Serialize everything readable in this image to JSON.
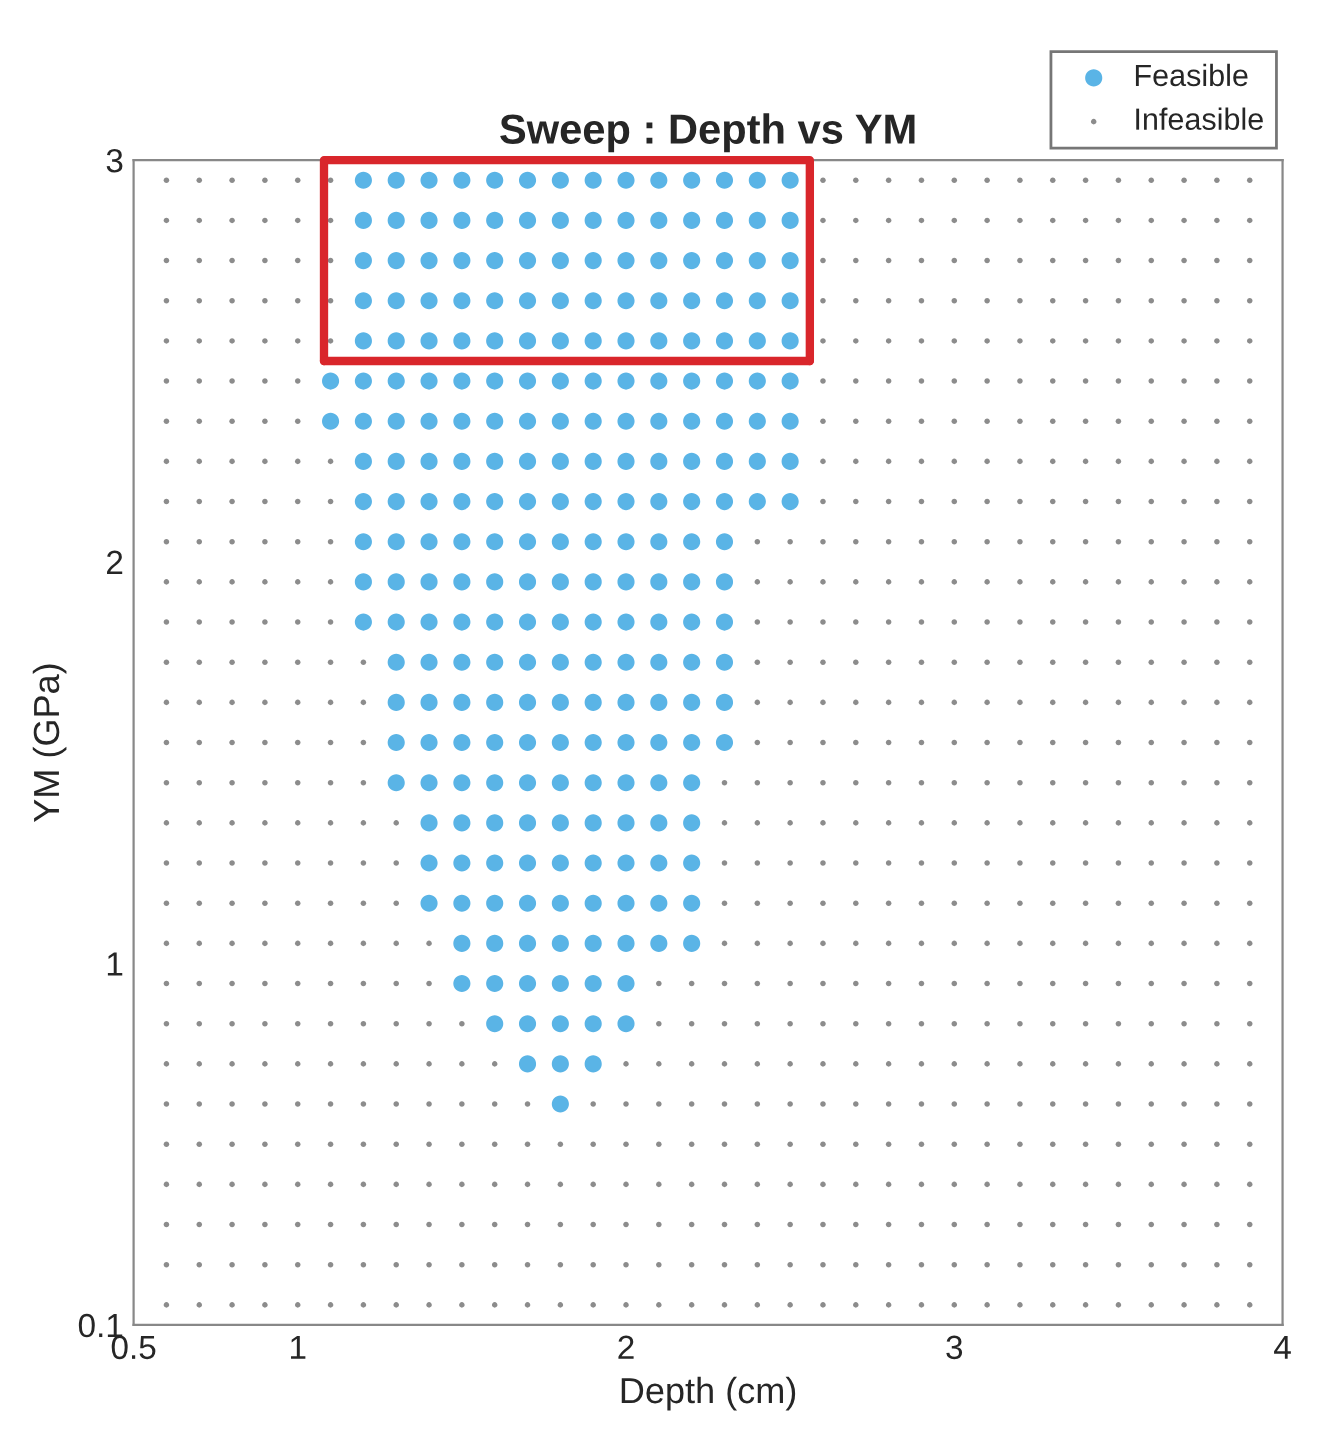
{
  "chart_data": {
    "type": "scatter",
    "title": "Sweep : Depth vs YM",
    "xlabel": "Depth (cm)",
    "ylabel": "YM (GPa)",
    "xlim": [
      0.5,
      4
    ],
    "ylim": [
      0.1,
      3
    ],
    "xticks": [
      0.5,
      1,
      2,
      3,
      4
    ],
    "yticks": [
      0.1,
      1,
      2,
      3
    ],
    "grid": false,
    "legend": "top right",
    "series": [
      {
        "name": "Feasible",
        "color": "#5ab4e6",
        "marker": "circle",
        "x": [
          1.1,
          1.1,
          1.2,
          1.2,
          1.2,
          1.2,
          1.2,
          1.2,
          1.2,
          1.2,
          1.2,
          1.2,
          1.2,
          1.2,
          1.3,
          1.3,
          1.3,
          1.3,
          1.3,
          1.3,
          1.3,
          1.3,
          1.3,
          1.3,
          1.3,
          1.3,
          1.3,
          1.3,
          1.3,
          1.3,
          1.4,
          1.4,
          1.4,
          1.4,
          1.4,
          1.4,
          1.4,
          1.4,
          1.4,
          1.4,
          1.4,
          1.4,
          1.4,
          1.4,
          1.4,
          1.4,
          1.4,
          1.4,
          1.4,
          1.5,
          1.5,
          1.5,
          1.5,
          1.5,
          1.5,
          1.5,
          1.5,
          1.5,
          1.5,
          1.5,
          1.5,
          1.5,
          1.5,
          1.5,
          1.5,
          1.5,
          1.5,
          1.5,
          1.5,
          1.5,
          1.6,
          1.6,
          1.6,
          1.6,
          1.6,
          1.6,
          1.6,
          1.6,
          1.6,
          1.6,
          1.6,
          1.6,
          1.6,
          1.6,
          1.6,
          1.6,
          1.6,
          1.6,
          1.6,
          1.6,
          1.6,
          1.6,
          1.7,
          1.7,
          1.7,
          1.7,
          1.7,
          1.7,
          1.7,
          1.7,
          1.7,
          1.7,
          1.7,
          1.7,
          1.7,
          1.7,
          1.7,
          1.7,
          1.7,
          1.7,
          1.7,
          1.7,
          1.7,
          1.7,
          1.7,
          1.8,
          1.8,
          1.8,
          1.8,
          1.8,
          1.8,
          1.8,
          1.8,
          1.8,
          1.8,
          1.8,
          1.8,
          1.8,
          1.8,
          1.8,
          1.8,
          1.8,
          1.8,
          1.8,
          1.8,
          1.8,
          1.8,
          1.8,
          1.8,
          1.9,
          1.9,
          1.9,
          1.9,
          1.9,
          1.9,
          1.9,
          1.9,
          1.9,
          1.9,
          1.9,
          1.9,
          1.9,
          1.9,
          1.9,
          1.9,
          1.9,
          1.9,
          1.9,
          1.9,
          1.9,
          1.9,
          1.9,
          2.0,
          2.0,
          2.0,
          2.0,
          2.0,
          2.0,
          2.0,
          2.0,
          2.0,
          2.0,
          2.0,
          2.0,
          2.0,
          2.0,
          2.0,
          2.0,
          2.0,
          2.0,
          2.0,
          2.0,
          2.0,
          2.0,
          2.1,
          2.1,
          2.1,
          2.1,
          2.1,
          2.1,
          2.1,
          2.1,
          2.1,
          2.1,
          2.1,
          2.1,
          2.1,
          2.1,
          2.1,
          2.1,
          2.1,
          2.1,
          2.1,
          2.1,
          2.2,
          2.2,
          2.2,
          2.2,
          2.2,
          2.2,
          2.2,
          2.2,
          2.2,
          2.2,
          2.2,
          2.2,
          2.2,
          2.2,
          2.2,
          2.2,
          2.2,
          2.2,
          2.2,
          2.2,
          2.3,
          2.3,
          2.3,
          2.3,
          2.3,
          2.3,
          2.3,
          2.3,
          2.3,
          2.3,
          2.3,
          2.3,
          2.3,
          2.3,
          2.3,
          2.4,
          2.4,
          2.4,
          2.4,
          2.4,
          2.4,
          2.4,
          2.4,
          2.4,
          2.5,
          2.5,
          2.5,
          2.5,
          2.5,
          2.5,
          2.5,
          2.5,
          2.5
        ],
        "values": [
          2.35,
          2.45,
          1.85,
          1.95,
          2.05,
          2.15,
          2.25,
          2.35,
          2.45,
          2.55,
          2.65,
          2.75,
          2.85,
          2.95,
          1.45,
          1.55,
          1.65,
          1.75,
          1.85,
          1.95,
          2.05,
          2.15,
          2.25,
          2.35,
          2.45,
          2.55,
          2.65,
          2.75,
          2.85,
          2.95,
          1.15,
          1.25,
          1.35,
          1.45,
          1.55,
          1.65,
          1.75,
          1.85,
          1.95,
          2.05,
          2.15,
          2.25,
          2.35,
          2.45,
          2.55,
          2.65,
          2.75,
          2.85,
          2.95,
          0.95,
          1.05,
          1.15,
          1.25,
          1.35,
          1.45,
          1.55,
          1.65,
          1.75,
          1.85,
          1.95,
          2.05,
          2.15,
          2.25,
          2.35,
          2.45,
          2.55,
          2.65,
          2.75,
          2.85,
          2.95,
          0.85,
          0.95,
          1.05,
          1.15,
          1.25,
          1.35,
          1.45,
          1.55,
          1.65,
          1.75,
          1.85,
          1.95,
          2.05,
          2.15,
          2.25,
          2.35,
          2.45,
          2.55,
          2.65,
          2.75,
          2.85,
          2.95,
          0.75,
          0.85,
          0.95,
          1.05,
          1.15,
          1.25,
          1.35,
          1.45,
          1.55,
          1.65,
          1.75,
          1.85,
          1.95,
          2.05,
          2.15,
          2.25,
          2.35,
          2.45,
          2.55,
          2.65,
          2.75,
          2.85,
          2.95,
          0.65,
          0.75,
          0.85,
          0.95,
          1.05,
          1.15,
          1.25,
          1.35,
          1.45,
          1.55,
          1.65,
          1.75,
          1.85,
          1.95,
          2.05,
          2.15,
          2.25,
          2.35,
          2.45,
          2.55,
          2.65,
          2.75,
          2.85,
          2.95,
          0.75,
          0.85,
          0.95,
          1.05,
          1.15,
          1.25,
          1.35,
          1.45,
          1.55,
          1.65,
          1.75,
          1.85,
          1.95,
          2.05,
          2.15,
          2.25,
          2.35,
          2.45,
          2.55,
          2.65,
          2.75,
          2.85,
          2.95,
          0.85,
          0.95,
          1.05,
          1.15,
          1.25,
          1.35,
          1.45,
          1.55,
          1.65,
          1.75,
          1.85,
          1.95,
          2.05,
          2.15,
          2.25,
          2.35,
          2.45,
          2.55,
          2.65,
          2.75,
          2.85,
          2.95,
          1.05,
          1.15,
          1.25,
          1.35,
          1.45,
          1.55,
          1.65,
          1.75,
          1.85,
          1.95,
          2.05,
          2.15,
          2.25,
          2.35,
          2.45,
          2.55,
          2.65,
          2.75,
          2.85,
          2.95,
          1.05,
          1.15,
          1.25,
          1.35,
          1.45,
          1.55,
          1.65,
          1.75,
          1.85,
          1.95,
          2.05,
          2.15,
          2.25,
          2.35,
          2.45,
          2.55,
          2.65,
          2.75,
          2.85,
          2.95,
          1.55,
          1.65,
          1.75,
          1.85,
          1.95,
          2.05,
          2.15,
          2.25,
          2.35,
          2.45,
          2.55,
          2.65,
          2.75,
          2.85,
          2.95,
          2.15,
          2.25,
          2.35,
          2.45,
          2.55,
          2.65,
          2.75,
          2.85,
          2.95,
          2.15,
          2.25,
          2.35,
          2.45,
          2.55,
          2.65,
          2.75,
          2.85,
          2.95
        ]
      },
      {
        "name": "Infeasible",
        "color": "#8c8c8c",
        "marker": "circle",
        "x": [
          0.6,
          0.6,
          0.6,
          0.6,
          0.6,
          0.6,
          0.6,
          0.6,
          0.6,
          0.6,
          0.6,
          0.6,
          0.6,
          0.6,
          0.6,
          0.6,
          0.6,
          0.6,
          0.6,
          0.6,
          0.6,
          0.6,
          0.6,
          0.6,
          0.6,
          0.6,
          0.6,
          0.6,
          0.6,
          0.7,
          0.7,
          0.7,
          0.7,
          0.7,
          0.7,
          0.7,
          0.7,
          0.7,
          0.7,
          0.7,
          0.7,
          0.7,
          0.7,
          0.7,
          0.7,
          0.7,
          0.7,
          0.7,
          0.7,
          0.7,
          0.7,
          0.7,
          0.7,
          0.7,
          0.7,
          0.7,
          0.7,
          0.7,
          0.8,
          0.8,
          0.8,
          0.8,
          0.8,
          0.8,
          0.8,
          0.8,
          0.8,
          0.8,
          0.8,
          0.8,
          0.8,
          0.8,
          0.8,
          0.8,
          0.8,
          0.8,
          0.8,
          0.8,
          0.8,
          0.8,
          0.8,
          0.8,
          0.8,
          0.8,
          0.8,
          0.8,
          0.8,
          0.9,
          0.9,
          0.9,
          0.9,
          0.9,
          0.9,
          0.9,
          0.9,
          0.9,
          0.9,
          0.9,
          0.9,
          0.9,
          0.9,
          0.9,
          0.9,
          0.9,
          0.9,
          0.9,
          0.9,
          0.9,
          0.9,
          0.9,
          0.9,
          0.9,
          0.9,
          0.9,
          0.9,
          0.9,
          1.0,
          1.0,
          1.0,
          1.0,
          1.0,
          1.0,
          1.0,
          1.0,
          1.0,
          1.0,
          1.0,
          1.0,
          1.0,
          1.0,
          1.0,
          1.0,
          1.0,
          1.0,
          1.0,
          1.0,
          1.0,
          1.0,
          1.0,
          1.0,
          1.0,
          1.0,
          1.0,
          1.0,
          1.0,
          1.1,
          1.1,
          1.1,
          1.1,
          1.1,
          1.1,
          1.1,
          1.1,
          1.1,
          1.1,
          1.1,
          1.1,
          1.1,
          1.1,
          1.1,
          1.1,
          1.1,
          1.1,
          1.1,
          1.1,
          1.1,
          1.1,
          1.1,
          1.1,
          1.1,
          1.1,
          1.1,
          1.2,
          1.2,
          1.2,
          1.2,
          1.2,
          1.2,
          1.2,
          1.2,
          1.2,
          1.2,
          1.2,
          1.2,
          1.2,
          1.2,
          1.2,
          1.2,
          1.2,
          1.3,
          1.3,
          1.3,
          1.3,
          1.3,
          1.3,
          1.3,
          1.3,
          1.3,
          1.3,
          1.3,
          1.3,
          1.3,
          1.4,
          1.4,
          1.4,
          1.4,
          1.4,
          1.4,
          1.4,
          1.4,
          1.4,
          1.4,
          1.5,
          1.5,
          1.5,
          1.5,
          1.5,
          1.5,
          1.5,
          1.5,
          1.6,
          1.6,
          1.6,
          1.6,
          1.6,
          1.6,
          1.6,
          1.7,
          1.7,
          1.7,
          1.7,
          1.7,
          1.7,
          1.8,
          1.8,
          1.8,
          1.8,
          1.8,
          1.9,
          1.9,
          1.9,
          1.9,
          1.9,
          1.9,
          2.0,
          2.0,
          2.0,
          2.0,
          2.0,
          2.0,
          2.0,
          2.1,
          2.1,
          2.1,
          2.1,
          2.1,
          2.1,
          2.1,
          2.1,
          2.1,
          2.2,
          2.2,
          2.2,
          2.2,
          2.2,
          2.2,
          2.2,
          2.2,
          2.2,
          2.3,
          2.3,
          2.3,
          2.3,
          2.3,
          2.3,
          2.3,
          2.3,
          2.3,
          2.3,
          2.3,
          2.3,
          2.3,
          2.3,
          2.4,
          2.4,
          2.4,
          2.4,
          2.4,
          2.4,
          2.4,
          2.4,
          2.4,
          2.4,
          2.4,
          2.4,
          2.4,
          2.4,
          2.4,
          2.4,
          2.4,
          2.4,
          2.4,
          2.4,
          2.5,
          2.5,
          2.5,
          2.5,
          2.5,
          2.5,
          2.5,
          2.5,
          2.5,
          2.5,
          2.5,
          2.5,
          2.5,
          2.5,
          2.5,
          2.5,
          2.5,
          2.5,
          2.5,
          2.5,
          2.6,
          2.6,
          2.6,
          2.6,
          2.6,
          2.6,
          2.6,
          2.6,
          2.6,
          2.6,
          2.6,
          2.6,
          2.6,
          2.6,
          2.6,
          2.6,
          2.6,
          2.6,
          2.6,
          2.6,
          2.6,
          2.6,
          2.6,
          2.6,
          2.6,
          2.6,
          2.6,
          2.6,
          2.6,
          2.7,
          2.7,
          2.7,
          2.7,
          2.7,
          2.7,
          2.7,
          2.7,
          2.7,
          2.7,
          2.7,
          2.7,
          2.7,
          2.7,
          2.7,
          2.7,
          2.7,
          2.7,
          2.7,
          2.7,
          2.7,
          2.7,
          2.7,
          2.7,
          2.7,
          2.7,
          2.7,
          2.7,
          2.7,
          2.8,
          2.8,
          2.8,
          2.8,
          2.8,
          2.8,
          2.8,
          2.8,
          2.8,
          2.8,
          2.8,
          2.8,
          2.8,
          2.8,
          2.8,
          2.8,
          2.8,
          2.8,
          2.8,
          2.8,
          2.8,
          2.8,
          2.8,
          2.8,
          2.8,
          2.8,
          2.8,
          2.8,
          2.8,
          2.9,
          2.9,
          2.9,
          2.9,
          2.9,
          2.9,
          2.9,
          2.9,
          2.9,
          2.9,
          2.9,
          2.9,
          2.9,
          2.9,
          2.9,
          2.9,
          2.9,
          2.9,
          2.9,
          2.9,
          2.9,
          2.9,
          2.9,
          2.9,
          2.9,
          2.9,
          2.9,
          2.9,
          2.9,
          3.0,
          3.0,
          3.0,
          3.0,
          3.0,
          3.0,
          3.0,
          3.0,
          3.0,
          3.0,
          3.0,
          3.0,
          3.0,
          3.0,
          3.0,
          3.0,
          3.0,
          3.0,
          3.0,
          3.0,
          3.0,
          3.0,
          3.0,
          3.0,
          3.0,
          3.0,
          3.0,
          3.0,
          3.0,
          3.1,
          3.1,
          3.1,
          3.1,
          3.1,
          3.1,
          3.1,
          3.1,
          3.1,
          3.1,
          3.1,
          3.1,
          3.1,
          3.1,
          3.1,
          3.1,
          3.1,
          3.1,
          3.1,
          3.1,
          3.1,
          3.1,
          3.1,
          3.1,
          3.1,
          3.1,
          3.1,
          3.1,
          3.1,
          3.2,
          3.2,
          3.2,
          3.2,
          3.2,
          3.2,
          3.2,
          3.2,
          3.2,
          3.2,
          3.2,
          3.2,
          3.2,
          3.2,
          3.2,
          3.2,
          3.2,
          3.2,
          3.2,
          3.2,
          3.2,
          3.2,
          3.2,
          3.2,
          3.2,
          3.2,
          3.2,
          3.2,
          3.2,
          3.3,
          3.3,
          3.3,
          3.3,
          3.3,
          3.3,
          3.3,
          3.3,
          3.3,
          3.3,
          3.3,
          3.3,
          3.3,
          3.3,
          3.3,
          3.3,
          3.3,
          3.3,
          3.3,
          3.3,
          3.3,
          3.3,
          3.3,
          3.3,
          3.3,
          3.3,
          3.3,
          3.3,
          3.3,
          3.4,
          3.4,
          3.4,
          3.4,
          3.4,
          3.4,
          3.4,
          3.4,
          3.4,
          3.4,
          3.4,
          3.4,
          3.4,
          3.4,
          3.4,
          3.4,
          3.4,
          3.4,
          3.4,
          3.4,
          3.4,
          3.4,
          3.4,
          3.4,
          3.4,
          3.4,
          3.4,
          3.4,
          3.4,
          3.5,
          3.5,
          3.5,
          3.5,
          3.5,
          3.5,
          3.5,
          3.5,
          3.5,
          3.5,
          3.5,
          3.5,
          3.5,
          3.5,
          3.5,
          3.5,
          3.5,
          3.5,
          3.5,
          3.5,
          3.5,
          3.5,
          3.5,
          3.5,
          3.5,
          3.5,
          3.5,
          3.5,
          3.5,
          3.6,
          3.6,
          3.6,
          3.6,
          3.6,
          3.6,
          3.6,
          3.6,
          3.6,
          3.6,
          3.6,
          3.6,
          3.6,
          3.6,
          3.6,
          3.6,
          3.6,
          3.6,
          3.6,
          3.6,
          3.6,
          3.6,
          3.6,
          3.6,
          3.6,
          3.6,
          3.6,
          3.6,
          3.6,
          3.7,
          3.7,
          3.7,
          3.7,
          3.7,
          3.7,
          3.7,
          3.7,
          3.7,
          3.7,
          3.7,
          3.7,
          3.7,
          3.7,
          3.7,
          3.7,
          3.7,
          3.7,
          3.7,
          3.7,
          3.7,
          3.7,
          3.7,
          3.7,
          3.7,
          3.7,
          3.7,
          3.7,
          3.7,
          3.8,
          3.8,
          3.8,
          3.8,
          3.8,
          3.8,
          3.8,
          3.8,
          3.8,
          3.8,
          3.8,
          3.8,
          3.8,
          3.8,
          3.8,
          3.8,
          3.8,
          3.8,
          3.8,
          3.8,
          3.8,
          3.8,
          3.8,
          3.8,
          3.8,
          3.8,
          3.8,
          3.8,
          3.8,
          3.9,
          3.9,
          3.9,
          3.9,
          3.9,
          3.9,
          3.9,
          3.9,
          3.9,
          3.9,
          3.9,
          3.9,
          3.9,
          3.9,
          3.9,
          3.9,
          3.9,
          3.9,
          3.9,
          3.9,
          3.9,
          3.9,
          3.9,
          3.9,
          3.9,
          3.9,
          3.9,
          3.9,
          3.9
        ],
        "values": [
          0.15,
          0.25,
          0.35,
          0.45,
          0.55,
          0.65,
          0.75,
          0.85,
          0.95,
          1.05,
          1.15,
          1.25,
          1.35,
          1.45,
          1.55,
          1.65,
          1.75,
          1.85,
          1.95,
          2.05,
          2.15,
          2.25,
          2.35,
          2.45,
          2.55,
          2.65,
          2.75,
          2.85,
          2.95,
          0.15,
          0.25,
          0.35,
          0.45,
          0.55,
          0.65,
          0.75,
          0.85,
          0.95,
          1.05,
          1.15,
          1.25,
          1.35,
          1.45,
          1.55,
          1.65,
          1.75,
          1.85,
          1.95,
          2.05,
          2.15,
          2.25,
          2.35,
          2.45,
          2.55,
          2.65,
          2.75,
          2.85,
          2.95,
          0.15,
          0.25,
          0.35,
          0.45,
          0.55,
          0.65,
          0.75,
          0.85,
          0.95,
          1.05,
          1.15,
          1.25,
          1.35,
          1.45,
          1.55,
          1.65,
          1.75,
          1.85,
          1.95,
          2.05,
          2.15,
          2.25,
          2.35,
          2.45,
          2.55,
          2.65,
          2.75,
          2.85,
          2.95,
          0.15,
          0.25,
          0.35,
          0.45,
          0.55,
          0.65,
          0.75,
          0.85,
          0.95,
          1.05,
          1.15,
          1.25,
          1.35,
          1.45,
          1.55,
          1.65,
          1.75,
          1.85,
          1.95,
          2.05,
          2.15,
          2.25,
          2.35,
          2.45,
          2.55,
          2.65,
          2.75,
          2.85,
          2.95,
          0.15,
          0.25,
          0.35,
          0.45,
          0.55,
          0.65,
          0.75,
          0.85,
          0.95,
          1.05,
          1.15,
          1.25,
          1.35,
          1.45,
          1.55,
          1.65,
          1.75,
          1.85,
          1.95,
          2.05,
          2.15,
          2.25,
          2.35,
          2.45,
          2.55,
          2.65,
          2.75,
          2.85,
          2.95,
          0.15,
          0.25,
          0.35,
          0.45,
          0.55,
          0.65,
          0.75,
          0.85,
          0.95,
          1.05,
          1.15,
          1.25,
          1.35,
          1.45,
          1.55,
          1.65,
          1.75,
          1.85,
          1.95,
          2.05,
          2.15,
          2.25,
          2.55,
          2.65,
          2.75,
          2.85,
          2.95,
          0.15,
          0.25,
          0.35,
          0.45,
          0.55,
          0.65,
          0.75,
          0.85,
          0.95,
          1.05,
          1.15,
          1.25,
          1.35,
          1.45,
          1.55,
          1.65,
          1.75,
          0.15,
          0.25,
          0.35,
          0.45,
          0.55,
          0.65,
          0.75,
          0.85,
          0.95,
          1.05,
          1.15,
          1.25,
          1.35,
          0.15,
          0.25,
          0.35,
          0.45,
          0.55,
          0.65,
          0.75,
          0.85,
          0.95,
          1.05,
          0.15,
          0.25,
          0.35,
          0.45,
          0.55,
          0.65,
          0.75,
          0.85,
          0.15,
          0.25,
          0.35,
          0.45,
          0.55,
          0.65,
          0.75,
          0.15,
          0.25,
          0.35,
          0.45,
          0.55,
          0.65,
          0.15,
          0.25,
          0.35,
          0.45,
          0.55,
          0.15,
          0.25,
          0.35,
          0.45,
          0.55,
          0.65,
          0.15,
          0.25,
          0.35,
          0.45,
          0.55,
          0.65,
          0.75,
          0.15,
          0.25,
          0.35,
          0.45,
          0.55,
          0.65,
          0.75,
          0.85,
          0.95,
          0.15,
          0.25,
          0.35,
          0.45,
          0.55,
          0.65,
          0.75,
          0.85,
          0.95,
          0.15,
          0.25,
          0.35,
          0.45,
          0.55,
          0.65,
          0.75,
          0.85,
          0.95,
          1.05,
          1.15,
          1.25,
          1.35,
          1.45,
          0.15,
          0.25,
          0.35,
          0.45,
          0.55,
          0.65,
          0.75,
          0.85,
          0.95,
          1.05,
          1.15,
          1.25,
          1.35,
          1.45,
          1.55,
          1.65,
          1.75,
          1.85,
          1.95,
          2.05,
          0.15,
          0.25,
          0.35,
          0.45,
          0.55,
          0.65,
          0.75,
          0.85,
          0.95,
          1.05,
          1.15,
          1.25,
          1.35,
          1.45,
          1.55,
          1.65,
          1.75,
          1.85,
          1.95,
          2.05,
          0.15,
          0.25,
          0.35,
          0.45,
          0.55,
          0.65,
          0.75,
          0.85,
          0.95,
          1.05,
          1.15,
          1.25,
          1.35,
          1.45,
          1.55,
          1.65,
          1.75,
          1.85,
          1.95,
          2.05,
          2.15,
          2.25,
          2.35,
          2.45,
          2.55,
          2.65,
          2.75,
          2.85,
          2.95,
          0.15,
          0.25,
          0.35,
          0.45,
          0.55,
          0.65,
          0.75,
          0.85,
          0.95,
          1.05,
          1.15,
          1.25,
          1.35,
          1.45,
          1.55,
          1.65,
          1.75,
          1.85,
          1.95,
          2.05,
          2.15,
          2.25,
          2.35,
          2.45,
          2.55,
          2.65,
          2.75,
          2.85,
          2.95,
          0.15,
          0.25,
          0.35,
          0.45,
          0.55,
          0.65,
          0.75,
          0.85,
          0.95,
          1.05,
          1.15,
          1.25,
          1.35,
          1.45,
          1.55,
          1.65,
          1.75,
          1.85,
          1.95,
          2.05,
          2.15,
          2.25,
          2.35,
          2.45,
          2.55,
          2.65,
          2.75,
          2.85,
          2.95,
          0.15,
          0.25,
          0.35,
          0.45,
          0.55,
          0.65,
          0.75,
          0.85,
          0.95,
          1.05,
          1.15,
          1.25,
          1.35,
          1.45,
          1.55,
          1.65,
          1.75,
          1.85,
          1.95,
          2.05,
          2.15,
          2.25,
          2.35,
          2.45,
          2.55,
          2.65,
          2.75,
          2.85,
          2.95,
          0.15,
          0.25,
          0.35,
          0.45,
          0.55,
          0.65,
          0.75,
          0.85,
          0.95,
          1.05,
          1.15,
          1.25,
          1.35,
          1.45,
          1.55,
          1.65,
          1.75,
          1.85,
          1.95,
          2.05,
          2.15,
          2.25,
          2.35,
          2.45,
          2.55,
          2.65,
          2.75,
          2.85,
          2.95,
          0.15,
          0.25,
          0.35,
          0.45,
          0.55,
          0.65,
          0.75,
          0.85,
          0.95,
          1.05,
          1.15,
          1.25,
          1.35,
          1.45,
          1.55,
          1.65,
          1.75,
          1.85,
          1.95,
          2.05,
          2.15,
          2.25,
          2.35,
          2.45,
          2.55,
          2.65,
          2.75,
          2.85,
          2.95,
          0.15,
          0.25,
          0.35,
          0.45,
          0.55,
          0.65,
          0.75,
          0.85,
          0.95,
          1.05,
          1.15,
          1.25,
          1.35,
          1.45,
          1.55,
          1.65,
          1.75,
          1.85,
          1.95,
          2.05,
          2.15,
          2.25,
          2.35,
          2.45,
          2.55,
          2.65,
          2.75,
          2.85,
          2.95,
          0.15,
          0.25,
          0.35,
          0.45,
          0.55,
          0.65,
          0.75,
          0.85,
          0.95,
          1.05,
          1.15,
          1.25,
          1.35,
          1.45,
          1.55,
          1.65,
          1.75,
          1.85,
          1.95,
          2.05,
          2.15,
          2.25,
          2.35,
          2.45,
          2.55,
          2.65,
          2.75,
          2.85,
          2.95,
          0.15,
          0.25,
          0.35,
          0.45,
          0.55,
          0.65,
          0.75,
          0.85,
          0.95,
          1.05,
          1.15,
          1.25,
          1.35,
          1.45,
          1.55,
          1.65,
          1.75,
          1.85,
          1.95,
          2.05,
          2.15,
          2.25,
          2.35,
          2.45,
          2.55,
          2.65,
          2.75,
          2.85,
          2.95,
          0.15,
          0.25,
          0.35,
          0.45,
          0.55,
          0.65,
          0.75,
          0.85,
          0.95,
          1.05,
          1.15,
          1.25,
          1.35,
          1.45,
          1.55,
          1.65,
          1.75,
          1.85,
          1.95,
          2.05,
          2.15,
          2.25,
          2.35,
          2.45,
          2.55,
          2.65,
          2.75,
          2.85,
          2.95,
          0.15,
          0.25,
          0.35,
          0.45,
          0.55,
          0.65,
          0.75,
          0.85,
          0.95,
          1.05,
          1.15,
          1.25,
          1.35,
          1.45,
          1.55,
          1.65,
          1.75,
          1.85,
          1.95,
          2.05,
          2.15,
          2.25,
          2.35,
          2.45,
          2.55,
          2.65,
          2.75,
          2.85,
          2.95,
          0.15,
          0.25,
          0.35,
          0.45,
          0.55,
          0.65,
          0.75,
          0.85,
          0.95,
          1.05,
          1.15,
          1.25,
          1.35,
          1.45,
          1.55,
          1.65,
          1.75,
          1.85,
          1.95,
          2.05,
          2.15,
          2.25,
          2.35,
          2.45,
          2.55,
          2.65,
          2.75,
          2.85,
          2.95,
          0.15,
          0.25,
          0.35,
          0.45,
          0.55,
          0.65,
          0.75,
          0.85,
          0.95,
          1.05,
          1.15,
          1.25,
          1.35,
          1.45,
          1.55,
          1.65,
          1.75,
          1.85,
          1.95,
          2.05,
          2.15,
          2.25,
          2.35,
          2.45,
          2.55,
          2.65,
          2.75,
          2.85,
          2.95,
          0.15,
          0.25,
          0.35,
          0.45,
          0.55,
          0.65,
          0.75,
          0.85,
          0.95,
          1.05,
          1.15,
          1.25,
          1.35,
          1.45,
          1.55,
          1.65,
          1.75,
          1.85,
          1.95,
          2.05,
          2.15,
          2.25,
          2.35,
          2.45,
          2.55,
          2.65,
          2.75,
          2.85,
          2.95
        ]
      },
      {
        "type": "line",
        "color": "#d9262b",
        "line_style": "solid",
        "marker": "none",
        "x": [
          1.08,
          1.08,
          2.56,
          2.56
        ],
        "values": [
          2.5,
          3,
          3,
          2.5
        ]
      },
      {
        "type": "line",
        "color": "#d9262b",
        "line_style": "solid",
        "marker": "none",
        "x": [
          1.08,
          2.56
        ],
        "values": [
          2.5,
          2.5
        ]
      }
    ]
  }
}
